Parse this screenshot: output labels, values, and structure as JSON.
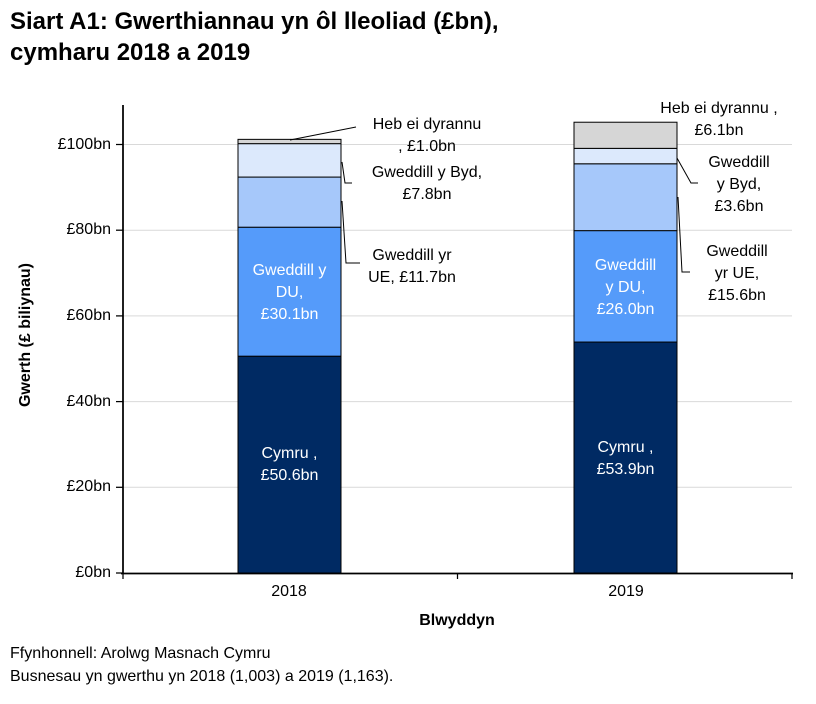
{
  "title": "Siart A1: Gwerthiannau yn ôl lleoliad (£bn),\ncymharu 2018 a 2019",
  "footer": {
    "line1": "Ffynhonnell: Arolwg Masnach Cymru",
    "line2": "Busnesau yn gwerthu yn 2018 (1,003) a 2019 (1,163)."
  },
  "chart_data": {
    "type": "bar",
    "stacked": true,
    "categories": [
      "2018",
      "2019"
    ],
    "series": [
      {
        "name": "Cymru",
        "color": "#002A63",
        "values": [
          50.6,
          53.9
        ]
      },
      {
        "name": "Gweddill y DU",
        "color": "#559BFA",
        "values": [
          30.1,
          26.0
        ]
      },
      {
        "name": "Gweddill yr UE",
        "color": "#A6C8FA",
        "values": [
          11.7,
          15.6
        ]
      },
      {
        "name": "Gweddill y Byd",
        "color": "#DCE9FC",
        "values": [
          7.8,
          3.6
        ]
      },
      {
        "name": "Heb ei dyrannu",
        "color": "#D6D6D6",
        "values": [
          1.0,
          6.1
        ]
      }
    ],
    "totals": [
      101.2,
      105.2
    ],
    "xlabel": "Blwyddyn",
    "ylabel": "Gwerth (£ biliynau)",
    "ylim": [
      0,
      110
    ],
    "y_ticks": [
      0,
      20,
      40,
      60,
      80,
      100
    ],
    "y_tick_labels": [
      "£0bn",
      "£20bn",
      "£40bn",
      "£60bn",
      "£80bn",
      "£100bn"
    ],
    "grid": "horizontal",
    "gridline_color": "#D9D9D9",
    "axis_color": "#000000",
    "bar_labels": {
      "cymru_2018": "Cymru ,\n£50.6bn",
      "du_2018": "Gweddill y\nDU,\n£30.1bn",
      "cymru_2019": "Cymru ,\n£53.9bn",
      "du_2019": "Gweddill\ny DU,\n£26.0bn"
    },
    "annotations": {
      "heb_2018": "Heb ei dyrannu\n, £1.0bn",
      "byd_2018": "Gweddill y Byd,\n£7.8bn",
      "ue_2018": "Gweddill yr\nUE, £11.7bn",
      "heb_2019": "Heb ei dyrannu ,\n£6.1bn",
      "byd_2019": "Gweddill\ny Byd,\n£3.6bn",
      "ue_2019": "Gweddill\nyr UE,\n£15.6bn"
    }
  }
}
